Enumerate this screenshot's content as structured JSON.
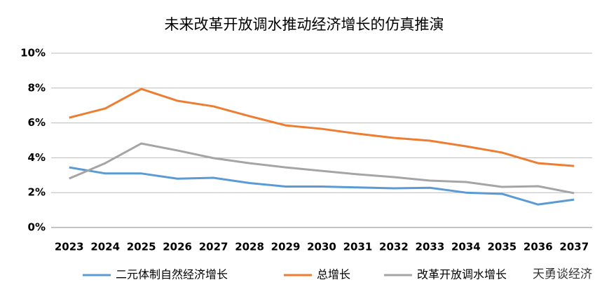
{
  "chart_data": {
    "type": "line",
    "title": "未来改革开放调水推动经济增长的仿真推演",
    "categories": [
      "2023",
      "2024",
      "2025",
      "2026",
      "2027",
      "2028",
      "2029",
      "2030",
      "2031",
      "2032",
      "2033",
      "2034",
      "2035",
      "2036",
      "2037"
    ],
    "series": [
      {
        "name": "二元体制自然经济增长",
        "color": "#5b9bd5",
        "values": [
          3.45,
          3.1,
          3.1,
          2.8,
          2.85,
          2.55,
          2.35,
          2.35,
          2.3,
          2.25,
          2.28,
          2.0,
          1.93,
          1.32,
          1.6
        ]
      },
      {
        "name": "总增长",
        "color": "#ed7d31",
        "values": [
          6.3,
          6.83,
          7.95,
          7.27,
          6.95,
          6.39,
          5.86,
          5.66,
          5.38,
          5.14,
          4.98,
          4.66,
          4.3,
          3.69,
          3.53
        ]
      },
      {
        "name": "改革开放调水增长",
        "color": "#a5a5a5",
        "values": [
          2.81,
          3.69,
          4.82,
          4.42,
          3.98,
          3.69,
          3.45,
          3.25,
          3.05,
          2.89,
          2.69,
          2.61,
          2.33,
          2.37,
          1.97
        ]
      }
    ],
    "ylim": [
      0,
      10
    ],
    "yticks": [
      {
        "value": 0,
        "label": "0%"
      },
      {
        "value": 2,
        "label": "2%"
      },
      {
        "value": 4,
        "label": "4%"
      },
      {
        "value": 6,
        "label": "6%"
      },
      {
        "value": 8,
        "label": "8%"
      },
      {
        "value": 10,
        "label": "10%"
      }
    ],
    "grid": true,
    "legend": "bottom",
    "watermark": "天勇谈经济"
  }
}
